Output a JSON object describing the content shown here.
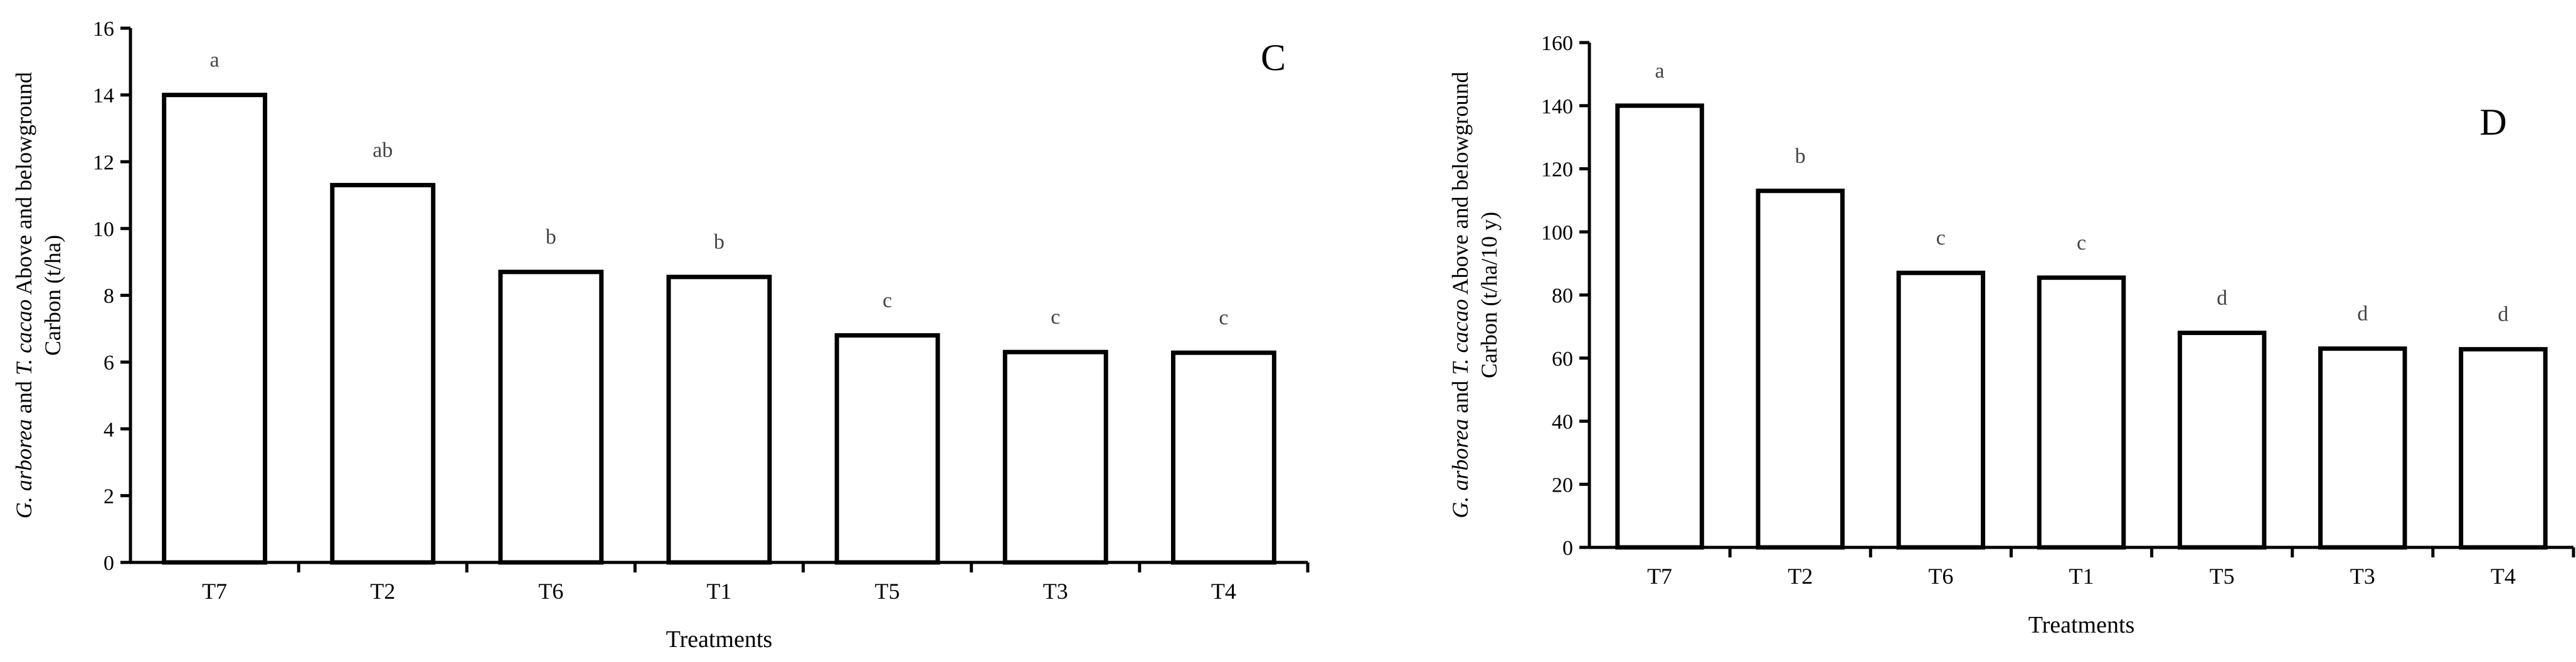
{
  "chart_data": [
    {
      "type": "bar",
      "panel_label": "C",
      "categories": [
        "T7",
        "T2",
        "T6",
        "T1",
        "T5",
        "T3",
        "T4"
      ],
      "values": [
        14.0,
        11.3,
        8.7,
        8.55,
        6.8,
        6.3,
        6.28
      ],
      "significance_letters": [
        "a",
        "ab",
        "b",
        "b",
        "c",
        "c",
        "c"
      ],
      "ylim": [
        0,
        16
      ],
      "yticks": [
        0,
        2,
        4,
        6,
        8,
        10,
        12,
        14,
        16
      ],
      "xlabel": "Treatments",
      "ylabel_italic_1": "G. arborea",
      "ylabel_mid": " and ",
      "ylabel_italic_2": "T. cacao",
      "ylabel_line1_rest": " Above and belowground",
      "ylabel_line2": "Carbon (t/ha)",
      "grid": false,
      "colors": {
        "bar_fill": "#ffffff",
        "bar_stroke": "#000000",
        "letters": "#444444"
      }
    },
    {
      "type": "bar",
      "panel_label": "D",
      "categories": [
        "T7",
        "T2",
        "T6",
        "T1",
        "T5",
        "T3",
        "T4"
      ],
      "values": [
        140,
        113,
        87,
        85.5,
        68,
        63,
        62.8
      ],
      "significance_letters": [
        "a",
        "b",
        "c",
        "c",
        "d",
        "d",
        "d"
      ],
      "ylim": [
        0,
        160
      ],
      "yticks": [
        0,
        20,
        40,
        60,
        80,
        100,
        120,
        140,
        160
      ],
      "xlabel": "Treatments",
      "ylabel_italic_1": "G. arborea",
      "ylabel_mid": " and ",
      "ylabel_italic_2": "T. cacao",
      "ylabel_line1_rest": " Above and belowground",
      "ylabel_line2": "Carbon (t/ha/10 y)",
      "grid": false,
      "colors": {
        "bar_fill": "#ffffff",
        "bar_stroke": "#000000",
        "letters": "#444444"
      }
    }
  ]
}
